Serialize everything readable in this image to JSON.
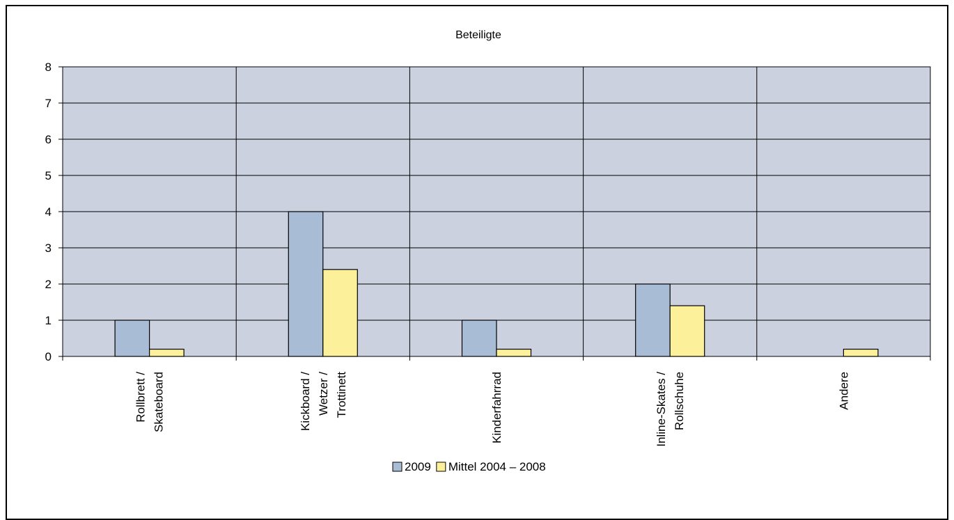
{
  "chart_data": {
    "type": "bar",
    "title": "Beteiligte",
    "xlabel": "",
    "ylabel": "",
    "ylim": [
      0,
      8
    ],
    "yticks": [
      "0",
      "1",
      "2",
      "3",
      "4",
      "5",
      "6",
      "7",
      "8"
    ],
    "grid": true,
    "legend_position": "bottom",
    "categories": [
      [
        "Rollbrett /",
        "Skateboard"
      ],
      [
        "Kickboard /",
        "Wetzer /",
        "Trottinett"
      ],
      [
        "Kinderfahrrad"
      ],
      [
        "Inline-Skates /",
        "Rollschuhe"
      ],
      [
        "Andere"
      ]
    ],
    "series": [
      {
        "name": "2009",
        "values": [
          1,
          4,
          1,
          2,
          0
        ],
        "color": "#a9bcd6"
      },
      {
        "name": "Mittel  2004 – 2008",
        "values": [
          0.2,
          2.4,
          0.2,
          1.4,
          0.2
        ],
        "color": "#fdf09b"
      }
    ],
    "plot_background": "#ccd1df"
  }
}
